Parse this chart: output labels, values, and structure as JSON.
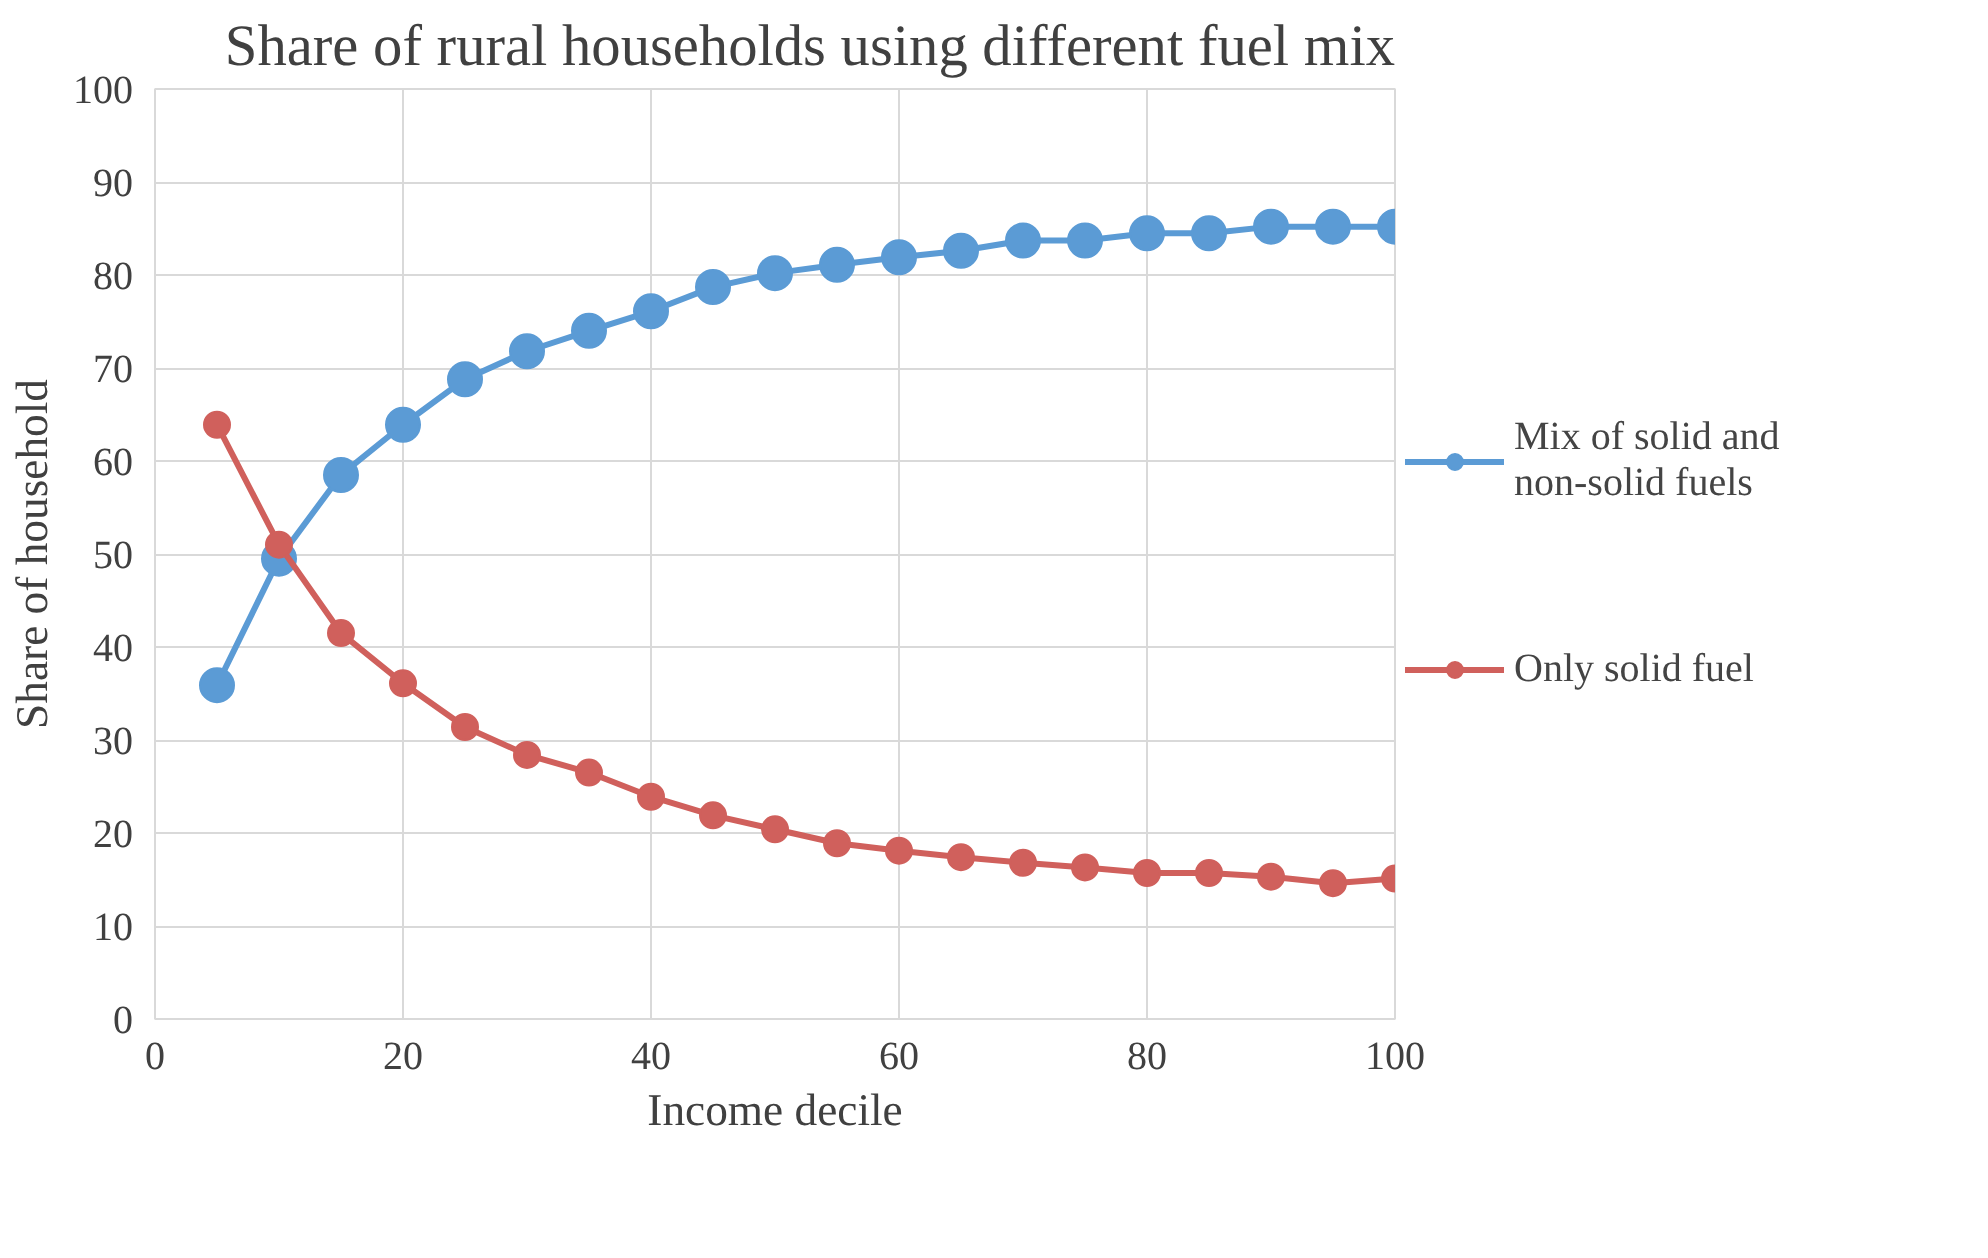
{
  "chart_data": {
    "type": "line",
    "title": "Share of rural households using different fuel mix",
    "xlabel": "Income decile",
    "ylabel": "Share of household",
    "x": [
      5,
      10,
      15,
      20,
      25,
      30,
      35,
      40,
      45,
      50,
      55,
      60,
      65,
      70,
      75,
      80,
      85,
      90,
      95,
      100
    ],
    "series": [
      {
        "name": "Mix of solid and non-solid fuels",
        "color": "#5b9bd5",
        "values": [
          35.9,
          49.5,
          58.5,
          63.9,
          68.8,
          71.8,
          74.0,
          76.1,
          78.7,
          80.2,
          81.1,
          81.9,
          82.6,
          83.7,
          83.7,
          84.5,
          84.5,
          85.2,
          85.2,
          85.2
        ]
      },
      {
        "name": "Only solid fuel",
        "color": "#d0605c",
        "values": [
          63.9,
          51.0,
          41.5,
          36.1,
          31.4,
          28.4,
          26.5,
          23.9,
          21.9,
          20.4,
          18.9,
          18.1,
          17.4,
          16.8,
          16.3,
          15.7,
          15.7,
          15.3,
          14.6,
          15.1
        ]
      }
    ],
    "xlim": [
      0,
      100
    ],
    "ylim": [
      0,
      100
    ],
    "xticks": [
      0,
      20,
      40,
      60,
      80,
      100
    ],
    "yticks": [
      0,
      10,
      20,
      30,
      40,
      50,
      60,
      70,
      80,
      90,
      100
    ],
    "grid": true,
    "legend": "right",
    "marker": "circle",
    "line_style": "solid"
  }
}
